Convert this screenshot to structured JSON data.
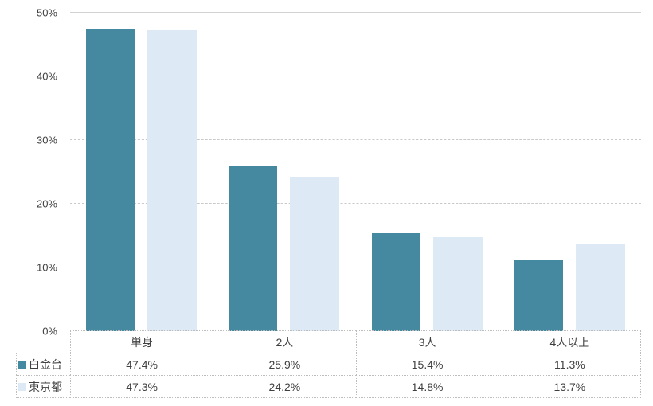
{
  "chart_data": {
    "type": "bar",
    "title": "",
    "categories": [
      "単身",
      "2人",
      "3人",
      "4人以上"
    ],
    "series": [
      {
        "name": "白金台",
        "color": "#4589a1",
        "values": [
          47.4,
          25.9,
          15.4,
          11.3
        ]
      },
      {
        "name": "東京都",
        "color": "#dde9f5",
        "values": [
          47.3,
          24.2,
          14.8,
          13.7
        ]
      }
    ],
    "ylim": [
      0,
      50
    ],
    "yticks": [
      0,
      10,
      20,
      30,
      40,
      50
    ],
    "grid": "horizontal-dashed",
    "legend_position": "table-left-of-value-rows"
  },
  "y_axis": {
    "labels": [
      "0%",
      "10%",
      "20%",
      "30%",
      "40%",
      "50%"
    ]
  },
  "table": {
    "header": [
      "単身",
      "2人",
      "3人",
      "4人以上"
    ],
    "rows": [
      {
        "label": "白金台",
        "cells": [
          "47.4%",
          "25.9%",
          "15.4%",
          "11.3%"
        ]
      },
      {
        "label": "東京都",
        "cells": [
          "47.3%",
          "24.2%",
          "14.8%",
          "13.7%"
        ]
      }
    ]
  },
  "colors": {
    "series_1": "#4589a1",
    "series_2": "#dde9f5",
    "gridline": "#c9c9c9",
    "table_border": "#bdbdbd",
    "text": "#3f3f3f"
  }
}
